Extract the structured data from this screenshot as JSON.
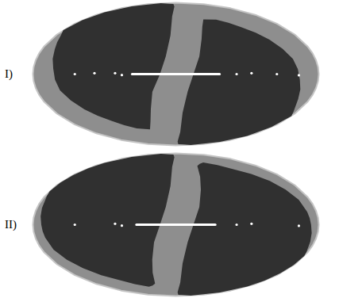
{
  "chart_data": [
    {
      "type": "map",
      "title": "I)",
      "color": "#8e8e8e",
      "regions": [
        {
          "color": "#303030",
          "outline": [
            [
              -179.9,
              38
            ],
            [
              -179.9,
              60
            ],
            [
              -179.9,
              84
            ],
            [
              -120,
              87
            ],
            [
              -60,
              88
            ],
            [
              -12,
              84
            ],
            [
              -10,
              70
            ],
            [
              -8,
              45
            ],
            [
              -12,
              20
            ],
            [
              -18,
              0
            ],
            [
              -28,
              -20
            ],
            [
              -35,
              -40
            ],
            [
              -45,
              -55
            ],
            [
              -60,
              -65
            ],
            [
              -85,
              -62
            ],
            [
              -110,
              -50
            ],
            [
              -130,
              -35
            ],
            [
              -145,
              -15
            ],
            [
              -150,
              5
            ],
            [
              -160,
              22
            ],
            [
              -172,
              34
            ]
          ]
        },
        {
          "color": "#303030",
          "outline": [
            [
              179.9,
              -36
            ],
            [
              179.9,
              -60
            ],
            [
              179.9,
              -84
            ],
            [
              120,
              -87
            ],
            [
              60,
              -88
            ],
            [
              14,
              -84
            ],
            [
              12,
              -70
            ],
            [
              10,
              -45
            ],
            [
              14,
              -20
            ],
            [
              20,
              0
            ],
            [
              28,
              20
            ],
            [
              36,
              40
            ],
            [
              47,
              55
            ],
            [
              62,
              64
            ],
            [
              88,
              62
            ],
            [
              112,
              50
            ],
            [
              132,
              34
            ],
            [
              146,
              14
            ],
            [
              152,
              -5
            ],
            [
              162,
              -22
            ],
            [
              173,
              -32
            ]
          ]
        }
      ],
      "lines": [
        {
          "color": "#ffffff",
          "points": [
            [
              -50,
              0
            ],
            [
              50,
              0
            ]
          ]
        }
      ],
      "points": {
        "color": "#ffffff",
        "values": [
          [
            -120,
            0
          ],
          [
            -95,
            1
          ],
          [
            -70,
            1
          ],
          [
            -62,
            -1
          ],
          [
            70,
            0
          ],
          [
            88,
            1
          ],
          [
            120,
            0
          ],
          [
            150,
            -1
          ]
        ]
      }
    },
    {
      "type": "map",
      "title": "II)",
      "color": "#8e8e8e",
      "regions": [
        {
          "color": "#303030",
          "outline": [
            [
              -179.9,
              28
            ],
            [
              -179.9,
              60
            ],
            [
              -179.9,
              84
            ],
            [
              -120,
              87
            ],
            [
              -60,
              88
            ],
            [
              -12,
              84
            ],
            [
              -10,
              70
            ],
            [
              -8,
              45
            ],
            [
              -12,
              20
            ],
            [
              -18,
              0
            ],
            [
              -26,
              -20
            ],
            [
              -33,
              -40
            ],
            [
              -42,
              -56
            ],
            [
              -58,
              -70
            ],
            [
              -90,
              -73
            ],
            [
              -122,
              -60
            ],
            [
              -148,
              -42
            ],
            [
              -162,
              -22
            ],
            [
              -167,
              0
            ],
            [
              -172,
              14
            ],
            [
              -177,
              24
            ]
          ]
        },
        {
          "color": "#303030",
          "outline": [
            [
              179.9,
              -26
            ],
            [
              179.9,
              -60
            ],
            [
              179.9,
              -84
            ],
            [
              120,
              -87
            ],
            [
              60,
              -88
            ],
            [
              14,
              -84
            ],
            [
              12,
              -70
            ],
            [
              10,
              -45
            ],
            [
              14,
              -20
            ],
            [
              20,
              0
            ],
            [
              28,
              20
            ],
            [
              35,
              40
            ],
            [
              44,
              56
            ],
            [
              60,
              70
            ],
            [
              92,
              73
            ],
            [
              124,
              60
            ],
            [
              150,
              42
            ],
            [
              163,
              22
            ],
            [
              168,
              0
            ],
            [
              173,
              -14
            ],
            [
              178,
              -23
            ]
          ]
        }
      ],
      "lines": [
        {
          "color": "#ffffff",
          "points": [
            [
              -45,
              0
            ],
            [
              45,
              0
            ]
          ]
        }
      ],
      "points": {
        "color": "#ffffff",
        "values": [
          [
            -120,
            0
          ],
          [
            -70,
            1
          ],
          [
            -62,
            -1
          ],
          [
            70,
            0
          ],
          [
            88,
            1
          ],
          [
            150,
            -1
          ]
        ]
      }
    }
  ]
}
